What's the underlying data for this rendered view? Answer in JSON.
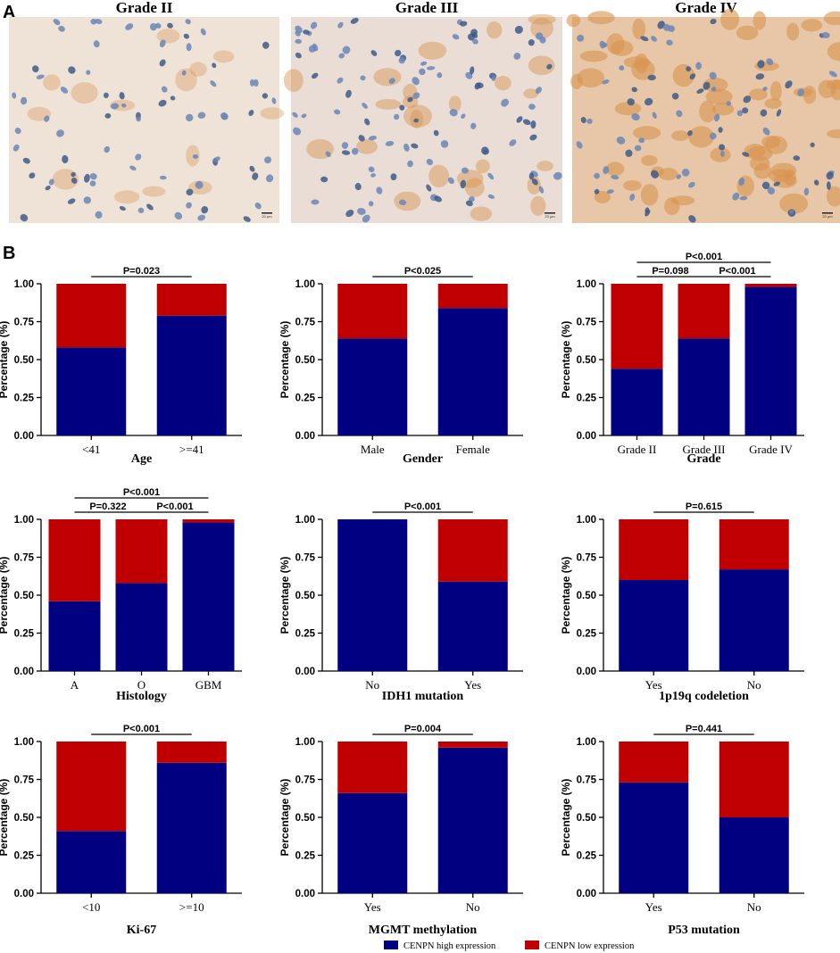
{
  "figure": {
    "panel_a_label": "A",
    "panel_b_label": "B",
    "colors": {
      "high": "#000080",
      "low": "#C00000"
    }
  },
  "micrographs": [
    {
      "title": "Grade II",
      "scale": "20 µm",
      "stain": "light"
    },
    {
      "title": "Grade III",
      "scale": "20 µm",
      "stain": "medium"
    },
    {
      "title": "Grade IV",
      "scale": "20 µm",
      "stain": "heavy"
    }
  ],
  "legend": {
    "items": [
      {
        "label": "CENPN high expression",
        "color": "#000080"
      },
      {
        "label": "CENPN low expression",
        "color": "#C00000"
      }
    ]
  },
  "chart_data": [
    {
      "type": "bar",
      "stacked": true,
      "title": "",
      "xlabel": "Age",
      "ylabel": "Percentage (%)",
      "ylim": [
        0,
        1
      ],
      "yticks": [
        "0.00",
        "0.25",
        "0.50",
        "0.75",
        "1.00"
      ],
      "categories": [
        "<41",
        ">=41"
      ],
      "series": [
        {
          "name": "CENPN high expression",
          "values": [
            0.58,
            0.79
          ]
        },
        {
          "name": "CENPN low expression",
          "values": [
            0.42,
            0.21
          ]
        }
      ],
      "pvalues": [
        {
          "text": "P=0.023",
          "from": 0,
          "to": 1,
          "level": 0
        }
      ]
    },
    {
      "type": "bar",
      "stacked": true,
      "title": "",
      "xlabel": "Gender",
      "ylabel": "Percentage (%)",
      "ylim": [
        0,
        1
      ],
      "yticks": [
        "0.00",
        "0.25",
        "0.50",
        "0.75",
        "1.00"
      ],
      "categories": [
        "Male",
        "Female"
      ],
      "series": [
        {
          "name": "CENPN high expression",
          "values": [
            0.64,
            0.84
          ]
        },
        {
          "name": "CENPN low expression",
          "values": [
            0.36,
            0.16
          ]
        }
      ],
      "pvalues": [
        {
          "text": "P<0.025",
          "from": 0,
          "to": 1,
          "level": 0
        }
      ]
    },
    {
      "type": "bar",
      "stacked": true,
      "title": "",
      "xlabel": "Grade",
      "ylabel": "Percentage (%)",
      "ylim": [
        0,
        1
      ],
      "yticks": [
        "0.00",
        "0.25",
        "0.50",
        "0.75",
        "1.00"
      ],
      "categories": [
        "Grade II",
        "Grade III",
        "Grade IV"
      ],
      "series": [
        {
          "name": "CENPN high expression",
          "values": [
            0.44,
            0.64,
            0.98
          ]
        },
        {
          "name": "CENPN low expression",
          "values": [
            0.56,
            0.36,
            0.02
          ]
        }
      ],
      "pvalues": [
        {
          "text": "P=0.098",
          "from": 0,
          "to": 1,
          "level": 0
        },
        {
          "text": "P<0.001",
          "from": 1,
          "to": 2,
          "level": 0
        },
        {
          "text": "P<0.001",
          "from": 0,
          "to": 2,
          "level": 1
        }
      ]
    },
    {
      "type": "bar",
      "stacked": true,
      "title": "",
      "xlabel": "Histology",
      "ylabel": "Percentage (%)",
      "ylim": [
        0,
        1
      ],
      "yticks": [
        "0.00",
        "0.25",
        "0.50",
        "0.75",
        "1.00"
      ],
      "categories": [
        "A",
        "O",
        "GBM"
      ],
      "series": [
        {
          "name": "CENPN high expression",
          "values": [
            0.46,
            0.58,
            0.98
          ]
        },
        {
          "name": "CENPN low expression",
          "values": [
            0.54,
            0.42,
            0.02
          ]
        }
      ],
      "pvalues": [
        {
          "text": "P=0.322",
          "from": 0,
          "to": 1,
          "level": 0
        },
        {
          "text": "P<0.001",
          "from": 1,
          "to": 2,
          "level": 0
        },
        {
          "text": "P<0.001",
          "from": 0,
          "to": 2,
          "level": 1
        }
      ]
    },
    {
      "type": "bar",
      "stacked": true,
      "title": "",
      "xlabel": "IDH1 mutation",
      "ylabel": "Percentage (%)",
      "ylim": [
        0,
        1
      ],
      "yticks": [
        "0.00",
        "0.25",
        "0.50",
        "0.75",
        "1.00"
      ],
      "categories": [
        "No",
        "Yes"
      ],
      "series": [
        {
          "name": "CENPN high expression",
          "values": [
            1.0,
            0.59
          ]
        },
        {
          "name": "CENPN low expression",
          "values": [
            0.0,
            0.41
          ]
        }
      ],
      "pvalues": [
        {
          "text": "P<0.001",
          "from": 0,
          "to": 1,
          "level": 0
        }
      ]
    },
    {
      "type": "bar",
      "stacked": true,
      "title": "",
      "xlabel": "1p19q codeletion",
      "ylabel": "Percentage (%)",
      "ylim": [
        0,
        1
      ],
      "yticks": [
        "0.00",
        "0.25",
        "0.50",
        "0.75",
        "1.00"
      ],
      "categories": [
        "Yes",
        "No"
      ],
      "series": [
        {
          "name": "CENPN high expression",
          "values": [
            0.6,
            0.67
          ]
        },
        {
          "name": "CENPN low expression",
          "values": [
            0.4,
            0.33
          ]
        }
      ],
      "pvalues": [
        {
          "text": "P=0.615",
          "from": 0,
          "to": 1,
          "level": 0
        }
      ]
    },
    {
      "type": "bar",
      "stacked": true,
      "title": "",
      "xlabel": "Ki-67",
      "ylabel": "Percentage (%)",
      "ylim": [
        0,
        1
      ],
      "yticks": [
        "0.00",
        "0.25",
        "0.50",
        "0.75",
        "1.00"
      ],
      "categories": [
        "<10",
        ">=10"
      ],
      "series": [
        {
          "name": "CENPN high expression",
          "values": [
            0.41,
            0.86
          ]
        },
        {
          "name": "CENPN low expression",
          "values": [
            0.59,
            0.14
          ]
        }
      ],
      "pvalues": [
        {
          "text": "P<0.001",
          "from": 0,
          "to": 1,
          "level": 0
        }
      ]
    },
    {
      "type": "bar",
      "stacked": true,
      "title": "",
      "xlabel": "MGMT methylation",
      "ylabel": "Percentage (%)",
      "ylim": [
        0,
        1
      ],
      "yticks": [
        "0.00",
        "0.25",
        "0.50",
        "0.75",
        "1.00"
      ],
      "categories": [
        "Yes",
        "No"
      ],
      "series": [
        {
          "name": "CENPN high expression",
          "values": [
            0.66,
            0.96
          ]
        },
        {
          "name": "CENPN low expression",
          "values": [
            0.34,
            0.04
          ]
        }
      ],
      "pvalues": [
        {
          "text": "P=0.004",
          "from": 0,
          "to": 1,
          "level": 0
        }
      ]
    },
    {
      "type": "bar",
      "stacked": true,
      "title": "",
      "xlabel": "P53 mutation",
      "ylabel": "Percentage (%)",
      "ylim": [
        0,
        1
      ],
      "yticks": [
        "0.00",
        "0.25",
        "0.50",
        "0.75",
        "1.00"
      ],
      "categories": [
        "Yes",
        "No"
      ],
      "series": [
        {
          "name": "CENPN high expression",
          "values": [
            0.73,
            0.5
          ]
        },
        {
          "name": "CENPN low expression",
          "values": [
            0.27,
            0.5
          ]
        }
      ],
      "pvalues": [
        {
          "text": "P=0.441",
          "from": 0,
          "to": 1,
          "level": 0
        }
      ]
    }
  ]
}
